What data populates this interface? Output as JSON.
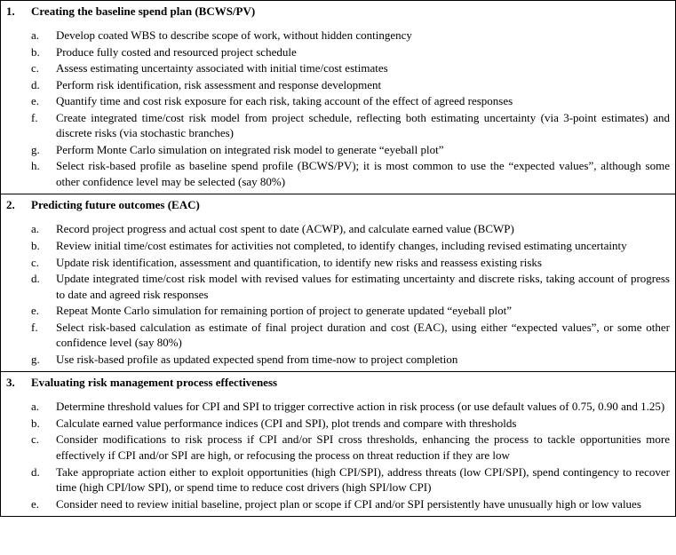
{
  "sections": [
    {
      "num": "1.",
      "title": "Creating the baseline spend plan (BCWS/PV)",
      "items": [
        {
          "letter": "a.",
          "text": "Develop coated WBS to describe scope of work, without hidden contingency"
        },
        {
          "letter": "b.",
          "text": "Produce fully costed and resourced project schedule"
        },
        {
          "letter": "c.",
          "text": "Assess estimating uncertainty associated with initial time/cost estimates"
        },
        {
          "letter": "d.",
          "text": "Perform risk identification, risk assessment and response development"
        },
        {
          "letter": "e.",
          "text": "Quantify time and cost risk exposure for each risk, taking account of the effect of agreed responses"
        },
        {
          "letter": "f.",
          "text": "Create integrated time/cost risk model from project schedule, reflecting both estimating uncertainty (via 3-point estimates) and discrete risks (via stochastic branches)"
        },
        {
          "letter": "g.",
          "text": "Perform Monte Carlo simulation on integrated risk model to generate “eyeball plot”"
        },
        {
          "letter": "h.",
          "text": "Select risk-based profile as baseline spend profile (BCWS/PV); it is most common to use the “expected values”, although some other confidence level may be selected (say 80%)"
        }
      ]
    },
    {
      "num": "2.",
      "title": "Predicting future outcomes (EAC)",
      "items": [
        {
          "letter": "a.",
          "text": "Record project progress and actual cost spent to date (ACWP), and calculate earned value (BCWP)"
        },
        {
          "letter": "b.",
          "text": "Review initial time/cost estimates for activities not completed, to identify changes, including revised estimating uncertainty"
        },
        {
          "letter": "c.",
          "text": "Update risk identification, assessment and quantification, to identify new risks and reassess existing risks"
        },
        {
          "letter": "d.",
          "text": "Update integrated time/cost risk model with revised values for estimating uncertainty and discrete risks, taking account of progress to date and agreed risk responses"
        },
        {
          "letter": "e.",
          "text": "Repeat Monte Carlo simulation for remaining portion of project to generate updated “eyeball plot”"
        },
        {
          "letter": "f.",
          "text": "Select risk-based calculation as estimate of final project duration and cost (EAC), using either “expected values”, or some other confidence level (say 80%)"
        },
        {
          "letter": "g.",
          "text": "Use risk-based profile as updated expected spend from time-now to project completion"
        }
      ]
    },
    {
      "num": "3.",
      "title": "Evaluating risk management process effectiveness",
      "items": [
        {
          "letter": "a.",
          "text": "Determine threshold values for CPI and SPI to trigger corrective action in risk process (or use default values of 0.75, 0.90 and 1.25)"
        },
        {
          "letter": "b.",
          "text": "Calculate earned value performance indices (CPI and SPI), plot trends and compare with thresholds"
        },
        {
          "letter": "c.",
          "text": "Consider modifications to risk process if CPI and/or SPI cross thresholds, enhancing the process to tackle opportunities more effectively if CPI and/or SPI are high, or refocusing the process on threat reduction if they are low"
        },
        {
          "letter": "d.",
          "text": "Take appropriate action either to exploit opportunities (high CPI/SPI), address threats (low CPI/SPI), spend contingency to recover time (high CPI/low SPI), or spend time to reduce cost drivers (high SPI/low CPI)"
        },
        {
          "letter": "e.",
          "text": "Consider need to review initial baseline, project plan or scope if CPI and/or SPI persistently have unusually high or low values"
        }
      ]
    }
  ]
}
